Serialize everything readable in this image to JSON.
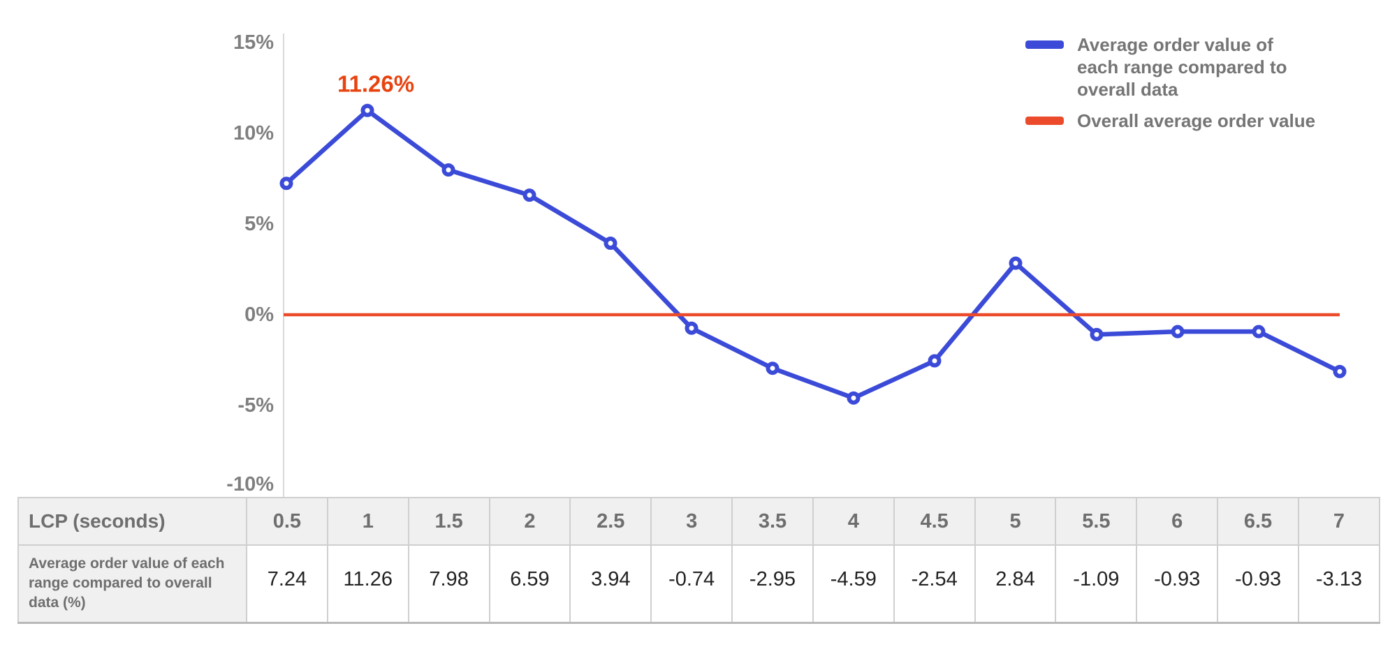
{
  "colors": {
    "series_blue": "#3b4bd8",
    "baseline_red": "#ec4b2b",
    "annotation_red": "#e8430f",
    "axis_text": "#7f7f7f",
    "axis_line": "#d9d9d9",
    "legend_text": "#757575",
    "table_header_text": "#6e6e6e",
    "table_value_text": "#222222",
    "table_header_bg": "#f0f0f0"
  },
  "legend": {
    "items": [
      {
        "label": "Average order value of each range compared to overall data",
        "color": "#3b4bd8"
      },
      {
        "label": "Overall average order value",
        "color": "#ec4b2b"
      }
    ]
  },
  "chart_data": {
    "type": "line",
    "x": [
      0.5,
      1,
      1.5,
      2,
      2.5,
      3,
      3.5,
      4,
      4.5,
      5,
      5.5,
      6,
      6.5,
      7
    ],
    "series": [
      {
        "name": "Average order value of each range compared to overall data",
        "values": [
          7.24,
          11.26,
          7.98,
          6.59,
          3.94,
          -0.74,
          -2.95,
          -4.59,
          -2.54,
          2.84,
          -1.09,
          -0.93,
          -0.93,
          -3.13
        ],
        "color": "#3b4bd8"
      }
    ],
    "baseline": {
      "name": "Overall average order value",
      "value": 0,
      "color": "#ec4b2b"
    },
    "annotations": [
      {
        "x": 1,
        "y": 11.26,
        "text": "11.26%"
      }
    ],
    "title": "",
    "xlabel": "LCP (seconds)",
    "ylabel": "",
    "ylim": [
      -10,
      15
    ],
    "y_ticks": [
      {
        "value": 15,
        "label": "15%"
      },
      {
        "value": 10,
        "label": "10%"
      },
      {
        "value": 5,
        "label": "5%"
      },
      {
        "value": 0,
        "label": "0%"
      },
      {
        "value": -5,
        "label": "-5%"
      },
      {
        "value": -10,
        "label": "-10%"
      }
    ],
    "grid": false,
    "legend_position": "top-right"
  },
  "table": {
    "header_label": "LCP (seconds)",
    "columns": [
      "0.5",
      "1",
      "1.5",
      "2",
      "2.5",
      "3",
      "3.5",
      "4",
      "4.5",
      "5",
      "5.5",
      "6",
      "6.5",
      "7"
    ],
    "row_label": "Average order value of each range compared to overall data (%)",
    "values": [
      "7.24",
      "11.26",
      "7.98",
      "6.59",
      "3.94",
      "-0.74",
      "-2.95",
      "-4.59",
      "-2.54",
      "2.84",
      "-1.09",
      "-0.93",
      "-0.93",
      "-3.13"
    ]
  }
}
